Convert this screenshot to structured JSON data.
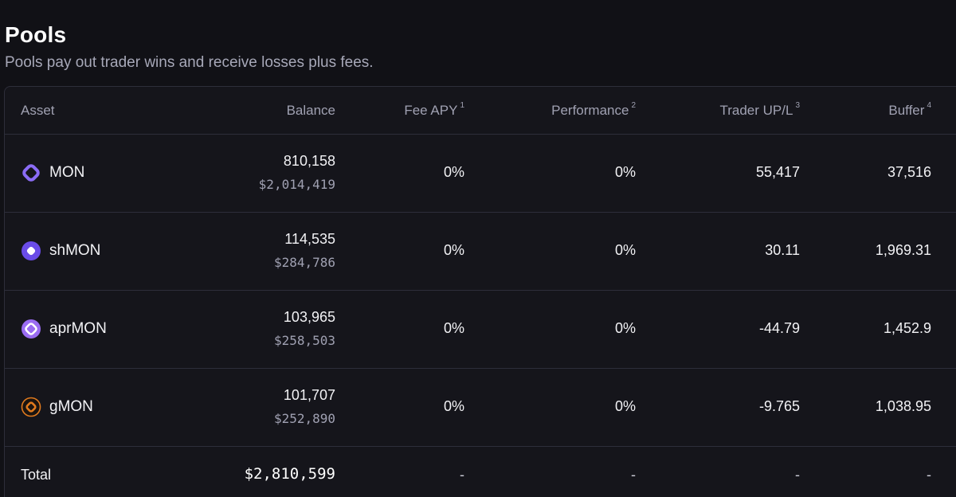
{
  "header": {
    "title": "Pools",
    "subtitle": "Pools pay out trader wins and receive losses plus fees."
  },
  "table": {
    "columns": [
      {
        "label": "Asset",
        "note": ""
      },
      {
        "label": "Balance",
        "note": ""
      },
      {
        "label": "Fee APY",
        "note": "1"
      },
      {
        "label": "Performance",
        "note": "2"
      },
      {
        "label": "Trader UP/L",
        "note": "3"
      },
      {
        "label": "Buffer",
        "note": "4"
      }
    ],
    "rows": [
      {
        "asset": "MON",
        "icon": "mon-icon",
        "balance": "810,158",
        "balance_usd": "$2,014,419",
        "fee_apy": "0%",
        "performance": "0%",
        "trader_upl": "55,417",
        "buffer": "37,516"
      },
      {
        "asset": "shMON",
        "icon": "shmon-icon",
        "balance": "114,535",
        "balance_usd": "$284,786",
        "fee_apy": "0%",
        "performance": "0%",
        "trader_upl": "30.11",
        "buffer": "1,969.31"
      },
      {
        "asset": "aprMON",
        "icon": "aprmon-icon",
        "balance": "103,965",
        "balance_usd": "$258,503",
        "fee_apy": "0%",
        "performance": "0%",
        "trader_upl": "-44.79",
        "buffer": "1,452.9"
      },
      {
        "asset": "gMON",
        "icon": "gmon-icon",
        "balance": "101,707",
        "balance_usd": "$252,890",
        "fee_apy": "0%",
        "performance": "0%",
        "trader_upl": "-9.765",
        "buffer": "1,038.95"
      }
    ],
    "total": {
      "label": "Total",
      "balance_usd": "$2,810,599",
      "fee_apy": "-",
      "performance": "-",
      "trader_upl": "-",
      "buffer": "-"
    }
  },
  "colors": {
    "background": "#111116",
    "card": "#15151b",
    "border": "#2d2e3a",
    "muted_text": "#a0a1b2",
    "mon_purple": "#8b6cf6",
    "shmon_violet": "#6a4ce8",
    "gmon_orange": "#e07a1e"
  }
}
